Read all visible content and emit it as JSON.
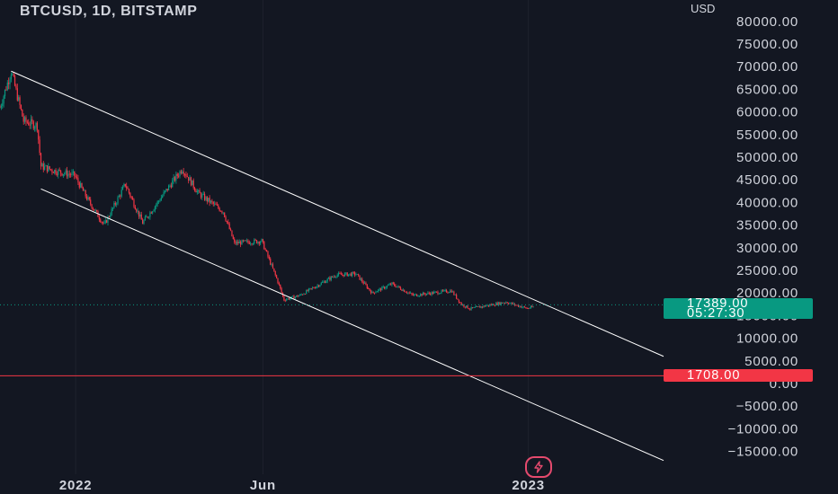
{
  "header": {
    "title": "BTCUSD, 1D, BITSTAMP",
    "currency": "USD"
  },
  "price_tags": {
    "last_price": "17389.00",
    "countdown": "05:27:30",
    "alert_price": "1708.00"
  },
  "colors": {
    "background": "#131722",
    "up": "#089981",
    "down": "#f23645",
    "channel": "#ffffff",
    "alert_line": "#f23645"
  },
  "icons": {
    "replay": "lightning-icon"
  },
  "chart_data": {
    "type": "candlestick",
    "symbol": "BTCUSD",
    "interval": "1D",
    "exchange": "BITSTAMP",
    "y_ticks": [
      "80000.00",
      "75000.00",
      "70000.00",
      "65000.00",
      "60000.00",
      "55000.00",
      "50000.00",
      "45000.00",
      "40000.00",
      "35000.00",
      "30000.00",
      "25000.00",
      "20000.00",
      "15000.00",
      "10000.00",
      "5000.00",
      "0.00",
      "−5000.00",
      "−10000.00",
      "−15000.00"
    ],
    "y_range": [
      -17500,
      81000
    ],
    "x_ticks": [
      "2022",
      "Jun",
      "2023"
    ],
    "x_tick_dates": [
      "2022-01-01",
      "2022-06-01",
      "2023-01-01"
    ],
    "x_range": [
      "2021-11-01",
      "2023-04-20"
    ],
    "price_path": [
      [
        "2021-11-01",
        61000
      ],
      [
        "2021-11-10",
        69000
      ],
      [
        "2021-11-20",
        58000
      ],
      [
        "2021-12-01",
        57000
      ],
      [
        "2021-12-04",
        48000
      ],
      [
        "2021-12-15",
        47000
      ],
      [
        "2021-12-31",
        46000
      ],
      [
        "2022-01-10",
        41000
      ],
      [
        "2022-01-24",
        35000
      ],
      [
        "2022-02-10",
        44000
      ],
      [
        "2022-02-24",
        35500
      ],
      [
        "2022-03-28",
        47500
      ],
      [
        "2022-04-10",
        42000
      ],
      [
        "2022-04-30",
        38000
      ],
      [
        "2022-05-09",
        31000
      ],
      [
        "2022-05-31",
        31500
      ],
      [
        "2022-06-13",
        22500
      ],
      [
        "2022-06-18",
        18500
      ],
      [
        "2022-07-01",
        19500
      ],
      [
        "2022-07-30",
        24000
      ],
      [
        "2022-08-15",
        24200
      ],
      [
        "2022-08-28",
        20000
      ],
      [
        "2022-09-13",
        22000
      ],
      [
        "2022-09-30",
        19500
      ],
      [
        "2022-10-31",
        20500
      ],
      [
        "2022-11-08",
        17500
      ],
      [
        "2022-11-15",
        16500
      ],
      [
        "2022-12-14",
        18000
      ],
      [
        "2022-12-31",
        16600
      ],
      [
        "2023-01-05",
        16900
      ]
    ],
    "channel_upper": {
      "start": [
        "2021-11-10",
        69000
      ],
      "end": [
        "2023-04-20",
        6000
      ]
    },
    "channel_lower": {
      "start": [
        "2021-12-04",
        43000
      ],
      "end": [
        "2023-04-20",
        -17000
      ]
    },
    "last_price": 17389.0,
    "alert_level": 1708.0
  }
}
